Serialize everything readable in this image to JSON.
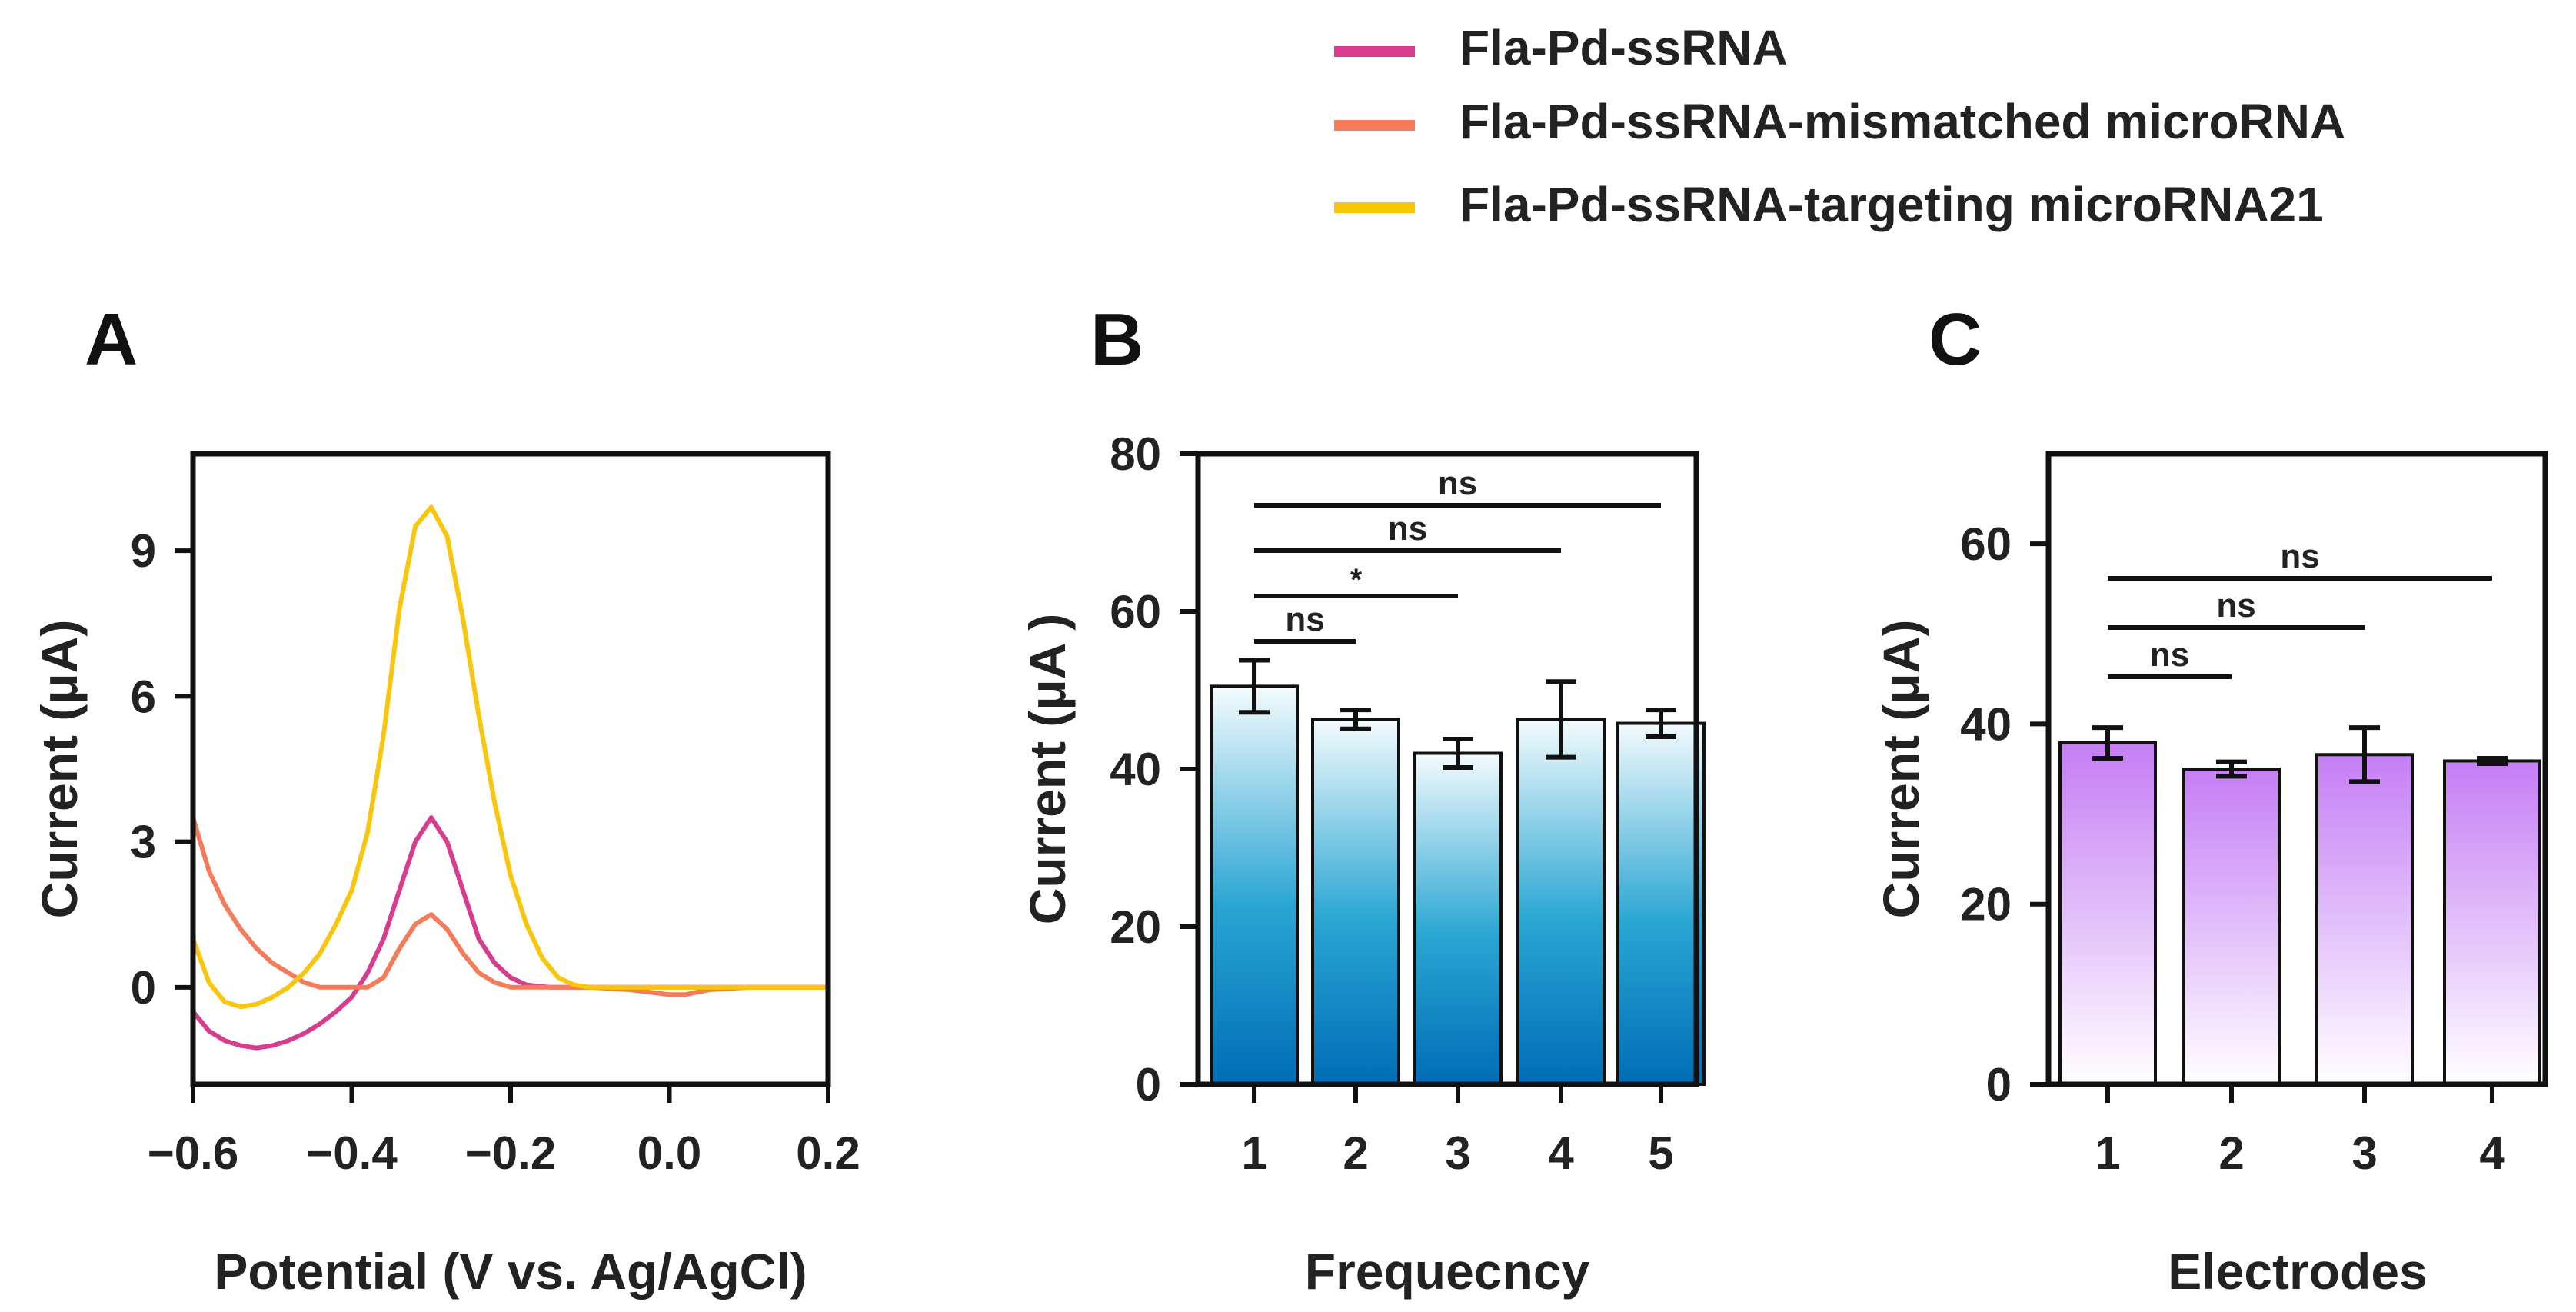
{
  "legend": [
    {
      "label": "Fla-Pd-ssRNA",
      "color": "#d63d8e"
    },
    {
      "label": "Fla-Pd-ssRNA-mismatched microRNA",
      "color": "#f47c5a"
    },
    {
      "label": "Fla-Pd-ssRNA-targeting microRNA21",
      "color": "#f9c60d"
    }
  ],
  "chart_data": [
    {
      "panel": "A",
      "type": "line",
      "xlabel": "Potential (V vs. Ag/AgCl)",
      "ylabel": "Current (μA)",
      "xlim": [
        -0.6,
        0.2
      ],
      "ylim": [
        -2,
        11
      ],
      "xticks": [
        -0.6,
        -0.4,
        -0.2,
        0.0,
        0.2
      ],
      "xtick_labels": [
        "−0.6",
        "−0.4",
        "−0.2",
        "0.0",
        "0.2"
      ],
      "yticks": [
        0,
        3,
        6,
        9
      ],
      "ytick_labels": [
        "0",
        "3",
        "6",
        "9"
      ],
      "series": [
        {
          "name": "Fla-Pd-ssRNA",
          "color": "#d63d8e",
          "x": [
            -0.6,
            -0.58,
            -0.56,
            -0.54,
            -0.52,
            -0.5,
            -0.48,
            -0.46,
            -0.44,
            -0.42,
            -0.4,
            -0.38,
            -0.36,
            -0.34,
            -0.32,
            -0.3,
            -0.28,
            -0.26,
            -0.24,
            -0.22,
            -0.2,
            -0.18,
            -0.15,
            -0.1,
            0.0,
            0.05,
            0.1,
            0.15,
            0.2
          ],
          "y": [
            -0.5,
            -0.9,
            -1.1,
            -1.2,
            -1.25,
            -1.2,
            -1.1,
            -0.95,
            -0.75,
            -0.5,
            -0.2,
            0.3,
            1.0,
            2.0,
            3.0,
            3.5,
            3.0,
            2.0,
            1.0,
            0.5,
            0.2,
            0.05,
            0.0,
            0.0,
            0.0,
            0.0,
            0.0,
            0.0,
            0.0
          ]
        },
        {
          "name": "Fla-Pd-ssRNA-mismatched microRNA",
          "color": "#f47c5a",
          "x": [
            -0.6,
            -0.58,
            -0.56,
            -0.54,
            -0.52,
            -0.5,
            -0.48,
            -0.46,
            -0.44,
            -0.42,
            -0.4,
            -0.38,
            -0.36,
            -0.34,
            -0.32,
            -0.3,
            -0.28,
            -0.26,
            -0.24,
            -0.22,
            -0.2,
            -0.15,
            -0.1,
            -0.05,
            0.0,
            0.02,
            0.05,
            0.1,
            0.15,
            0.2
          ],
          "y": [
            3.5,
            2.4,
            1.7,
            1.2,
            0.8,
            0.5,
            0.3,
            0.1,
            0.0,
            0.0,
            0.0,
            0.0,
            0.2,
            0.8,
            1.3,
            1.5,
            1.2,
            0.7,
            0.3,
            0.1,
            0.0,
            0.0,
            0.0,
            -0.05,
            -0.15,
            -0.15,
            -0.05,
            0.0,
            0.0,
            0.0
          ]
        },
        {
          "name": "Fla-Pd-ssRNA-targeting microRNA21",
          "color": "#f9c60d",
          "x": [
            -0.6,
            -0.58,
            -0.56,
            -0.54,
            -0.52,
            -0.5,
            -0.48,
            -0.46,
            -0.44,
            -0.42,
            -0.4,
            -0.38,
            -0.36,
            -0.34,
            -0.32,
            -0.3,
            -0.28,
            -0.26,
            -0.24,
            -0.22,
            -0.2,
            -0.18,
            -0.16,
            -0.14,
            -0.12,
            -0.1,
            0.0,
            0.1,
            0.2
          ],
          "y": [
            1.0,
            0.1,
            -0.3,
            -0.4,
            -0.35,
            -0.2,
            0.0,
            0.3,
            0.7,
            1.3,
            2.0,
            3.2,
            5.2,
            7.8,
            9.5,
            9.9,
            9.3,
            7.6,
            5.6,
            3.8,
            2.3,
            1.3,
            0.6,
            0.2,
            0.05,
            0.0,
            0.0,
            0.0,
            0.0
          ]
        }
      ]
    },
    {
      "panel": "B",
      "type": "bar",
      "xlabel": "Frequecncy",
      "ylabel": "Current (μA )",
      "ylim": [
        0,
        80
      ],
      "yticks": [
        0,
        20,
        40,
        60,
        80
      ],
      "categories": [
        "1",
        "2",
        "3",
        "4",
        "5"
      ],
      "values": [
        50.5,
        46.3,
        42.0,
        46.3,
        45.8
      ],
      "errors": [
        3.3,
        1.2,
        1.8,
        4.8,
        1.7
      ],
      "fill": {
        "top": "#f4fbfd",
        "bottom": "#006db6"
      },
      "comparisons": [
        {
          "from": "1",
          "to": "2",
          "label": "ns"
        },
        {
          "from": "1",
          "to": "3",
          "label": "*"
        },
        {
          "from": "1",
          "to": "4",
          "label": "ns"
        },
        {
          "from": "1",
          "to": "5",
          "label": "ns"
        }
      ]
    },
    {
      "panel": "C",
      "type": "bar",
      "xlabel": "Electrodes",
      "ylabel": "Current (μA)",
      "ylim": [
        0,
        70
      ],
      "yticks": [
        0,
        20,
        40,
        60
      ],
      "categories": [
        "1",
        "2",
        "3",
        "4"
      ],
      "values": [
        37.9,
        35.0,
        36.6,
        35.9
      ],
      "errors": [
        1.7,
        0.8,
        3.0,
        0.3
      ],
      "fill": {
        "top": "#c57ef5",
        "bottom": "#ffffff"
      },
      "comparisons": [
        {
          "from": "1",
          "to": "2",
          "label": "ns"
        },
        {
          "from": "1",
          "to": "3",
          "label": "ns"
        },
        {
          "from": "1",
          "to": "4",
          "label": "ns"
        }
      ]
    }
  ]
}
